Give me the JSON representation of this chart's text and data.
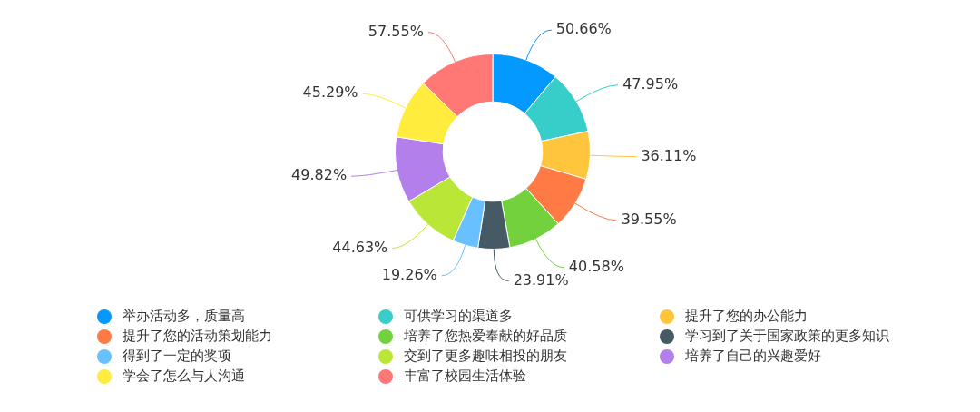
{
  "chart_data": {
    "type": "donut",
    "categories": [
      "举办活动多，质量高",
      "可供学习的渠道多",
      "提升了您的办公能力",
      "提升了您的活动策划能力",
      "培养了您热爱奉献的好品质",
      "学习到了关于国家政策的更多知识",
      "得到了一定的奖项",
      "交到了更多趣味相投的朋友",
      "培养了自己的兴趣爱好",
      "学会了怎么与人沟通",
      "丰富了校园生活体验"
    ],
    "values": [
      50.66,
      47.95,
      36.11,
      39.55,
      40.58,
      23.91,
      19.26,
      44.63,
      49.82,
      45.29,
      57.55
    ],
    "value_labels": [
      "50.66%",
      "47.95%",
      "36.11%",
      "39.55%",
      "40.58%",
      "23.91%",
      "19.26%",
      "44.63%",
      "49.82%",
      "45.29%",
      "57.55%"
    ],
    "colors": [
      "#0399fe",
      "#37ceca",
      "#ffc53d",
      "#ff7a45",
      "#73d13d",
      "#455a64",
      "#69c0ff",
      "#bae637",
      "#b37feb",
      "#ffec3d",
      "#ff7875"
    ],
    "legend": "bottom"
  }
}
